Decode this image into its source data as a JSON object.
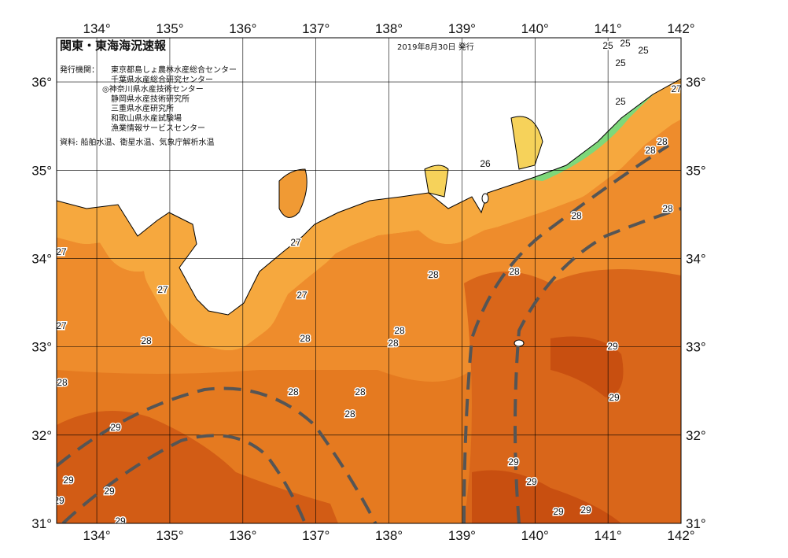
{
  "map": {
    "title": "関東・東海海況速報",
    "issue_date": "2019年8月30日 発行",
    "publisher_label": "発行機関：",
    "publishers": [
      "東京都島しょ農林水産総合センター",
      "千葉県水産総合研究センター",
      "◎神奈川県水産技術センター",
      "静岡県水産技術研究所",
      "三重県水産研究所",
      "和歌山県水産試験場",
      "漁業情報サービスセンター"
    ],
    "source": "資料: 船舶水温、衛星水温、気象庁解析水温",
    "lonlim": [
      133.45,
      142
    ],
    "latlim": [
      31,
      36.5
    ],
    "lon_ticks": [
      {
        "value": 134,
        "label": "134°"
      },
      {
        "value": 135,
        "label": "135°"
      },
      {
        "value": 136,
        "label": "136°"
      },
      {
        "value": 137,
        "label": "137°"
      },
      {
        "value": 138,
        "label": "138°"
      },
      {
        "value": 139,
        "label": "139°"
      },
      {
        "value": 140,
        "label": "140°"
      },
      {
        "value": 141,
        "label": "141°"
      },
      {
        "value": 142,
        "label": "142°"
      }
    ],
    "lat_ticks": [
      {
        "value": 31,
        "label": "31°"
      },
      {
        "value": 32,
        "label": "32°"
      },
      {
        "value": 33,
        "label": "33°"
      },
      {
        "value": 34,
        "label": "34°"
      },
      {
        "value": 35,
        "label": "35°"
      },
      {
        "value": 36,
        "label": "36°"
      }
    ],
    "contour_labels": [
      25,
      25,
      25,
      25,
      25,
      27,
      28,
      28,
      26,
      28,
      28,
      27,
      28,
      28,
      27,
      27,
      27,
      27,
      28,
      28,
      28,
      28,
      29,
      28,
      28,
      28,
      28,
      29,
      29,
      29,
      29,
      29,
      29,
      29,
      29,
      29,
      29
    ]
  }
}
